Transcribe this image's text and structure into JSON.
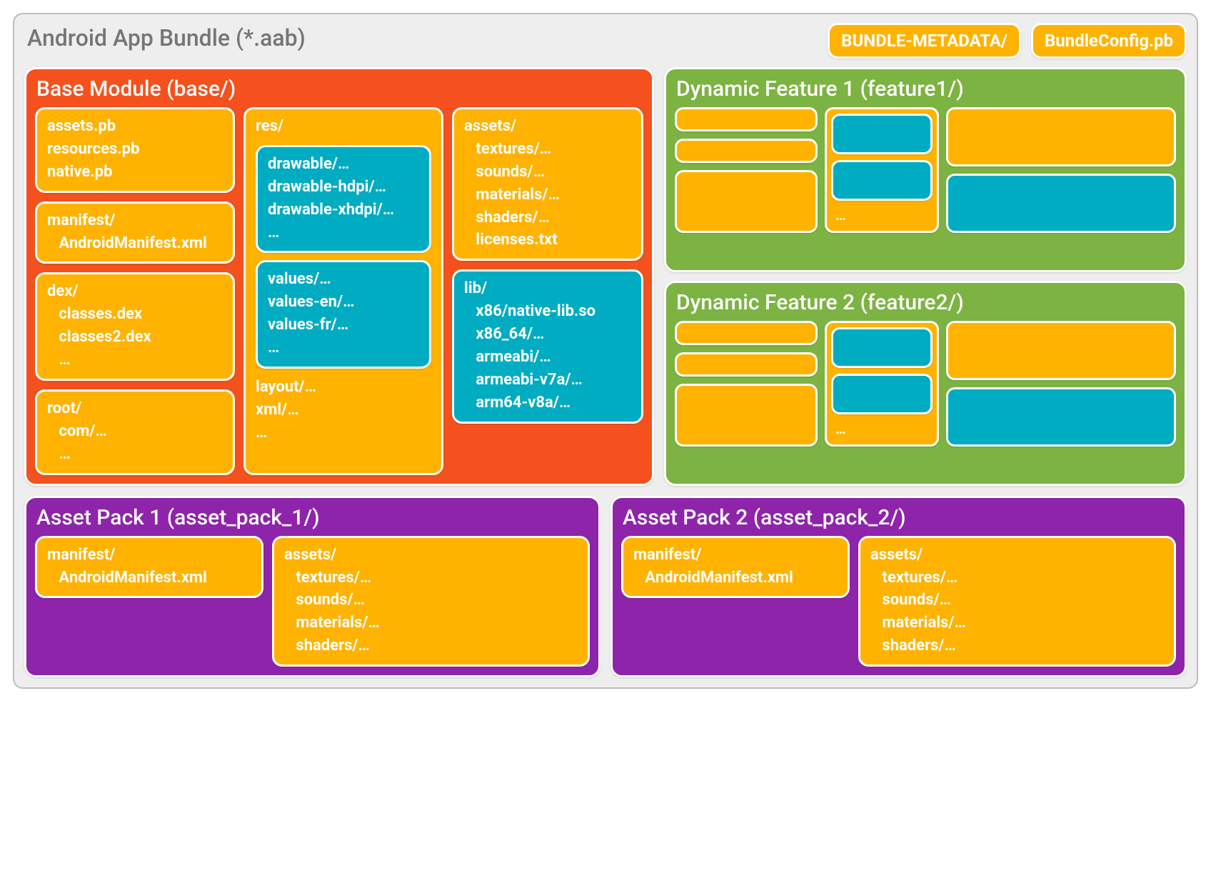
{
  "colors": {
    "outer_bg": "#eeeeee",
    "outer_border": "#bdbdbd",
    "outer_title": "#757575",
    "orange": "#f4511e",
    "amber": "#ffb300",
    "cyan": "#00acc1",
    "green": "#7cb342",
    "purple": "#8e24aa",
    "white": "#ffffff"
  },
  "typography": {
    "outer_title_size": 32,
    "module_title_size": 30,
    "card_text_size": 22,
    "mini_label_size": 20,
    "font_weight_title": 500,
    "font_weight_text": 700
  },
  "outer": {
    "title": "Android App Bundle (*.aab)",
    "pills": [
      {
        "label": "BUNDLE-METADATA/",
        "bg": "#ffb300"
      },
      {
        "label": "BundleConfig.pb",
        "bg": "#ffb300"
      }
    ]
  },
  "base": {
    "title": "Base Module (base/)",
    "bg": "#f4511e",
    "col1": [
      {
        "bg": "#ffb300",
        "lines": [
          "assets.pb",
          "resources.pb",
          "native.pb"
        ]
      },
      {
        "bg": "#ffb300",
        "lines": [
          "manifest/",
          "   AndroidManifest.xml"
        ]
      },
      {
        "bg": "#ffb300",
        "lines": [
          "dex/",
          "   classes.dex",
          "   classes2.dex",
          "   …"
        ]
      },
      {
        "bg": "#ffb300",
        "lines": [
          "root/",
          "   com/…",
          "   …"
        ]
      }
    ],
    "col2_outer": {
      "bg": "#ffb300",
      "header": "res/",
      "inner": [
        {
          "bg": "#00acc1",
          "lines": [
            "drawable/…",
            "drawable-hdpi/…",
            "drawable-xhdpi/…",
            "…"
          ]
        },
        {
          "bg": "#00acc1",
          "lines": [
            "values/…",
            "values-en/…",
            "values-fr/…",
            "…"
          ]
        }
      ],
      "footer_lines": [
        "layout/…",
        "xml/…",
        "…"
      ]
    },
    "col3": [
      {
        "bg": "#ffb300",
        "lines": [
          "assets/",
          "   textures/…",
          "   sounds/…",
          "   materials/…",
          "   shaders/…",
          "   licenses.txt"
        ]
      },
      {
        "bg": "#00acc1",
        "lines": [
          "lib/",
          "   x86/native-lib.so",
          "   x86_64/…",
          "   armeabi/…",
          "   armeabi-v7a/…",
          "   arm64-v8a/…"
        ]
      }
    ]
  },
  "feature1_title": "Dynamic Feature 1 (feature1/)",
  "feature2_title": "Dynamic Feature 2 (feature2/)",
  "feature_label": "…",
  "feature_bg": "#7cb342",
  "feature_mini_amber": "#ffb300",
  "feature_mini_cyan": "#00acc1",
  "asset1": {
    "title": "Asset Pack 1 (asset_pack_1/)",
    "bg": "#8e24aa",
    "manifest": {
      "bg": "#ffb300",
      "lines": [
        "manifest/",
        "   AndroidManifest.xml"
      ]
    },
    "assets": {
      "bg": "#ffb300",
      "lines": [
        "assets/",
        "   textures/…",
        "   sounds/…",
        "   materials/…",
        "   shaders/…"
      ]
    }
  },
  "asset2": {
    "title": "Asset Pack 2 (asset_pack_2/)",
    "bg": "#8e24aa",
    "manifest": {
      "bg": "#ffb300",
      "lines": [
        "manifest/",
        "   AndroidManifest.xml"
      ]
    },
    "assets": {
      "bg": "#ffb300",
      "lines": [
        "assets/",
        "   textures/…",
        "   sounds/…",
        "   materials/…",
        "   shaders/…"
      ]
    }
  }
}
